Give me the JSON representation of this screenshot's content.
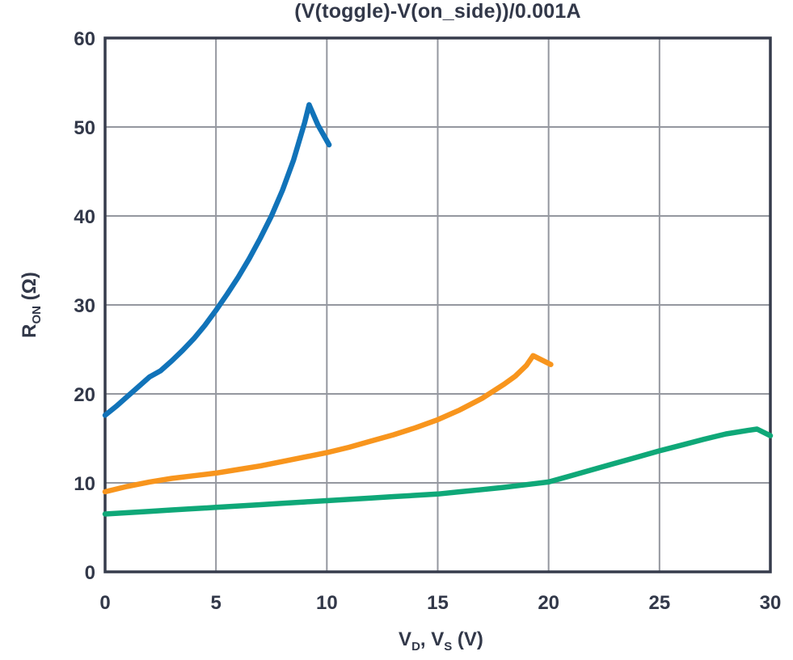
{
  "chart_data": {
    "type": "line",
    "title": "(V(toggle)-V(on_side))/0.001A",
    "xlabel": "V_D, V_S (V)",
    "ylabel": "R_ON (Ω)",
    "xlabel_parts": [
      {
        "t": "V"
      },
      {
        "t": "D",
        "sub": true
      },
      {
        "t": ", V"
      },
      {
        "t": "S",
        "sub": true
      },
      {
        "t": " (V)"
      }
    ],
    "ylabel_parts": [
      {
        "t": "R"
      },
      {
        "t": "ON",
        "sub": true
      },
      {
        "t": " (Ω)"
      }
    ],
    "xlim": [
      0,
      30
    ],
    "ylim": [
      0,
      60
    ],
    "x_ticks": [
      0,
      5,
      10,
      15,
      20,
      25,
      30
    ],
    "y_ticks": [
      0,
      10,
      20,
      30,
      40,
      50,
      60
    ],
    "grid": true,
    "legend_position": "none",
    "colors": {
      "blue": "#1173B9",
      "orange": "#F8951D",
      "green": "#0FA878",
      "axis": "#363C4C",
      "grid": "#94979F",
      "text": "#323849",
      "background": "#FFFFFF"
    },
    "series": [
      {
        "name": "blue",
        "color_key": "blue",
        "points": [
          [
            0,
            17.6
          ],
          [
            0.5,
            18.6
          ],
          [
            1,
            19.7
          ],
          [
            1.5,
            20.8
          ],
          [
            2,
            21.9
          ],
          [
            2.5,
            22.6
          ],
          [
            3,
            23.7
          ],
          [
            3.5,
            24.9
          ],
          [
            4,
            26.2
          ],
          [
            4.5,
            27.7
          ],
          [
            5,
            29.4
          ],
          [
            5.5,
            31.2
          ],
          [
            6,
            33.1
          ],
          [
            6.5,
            35.2
          ],
          [
            7,
            37.5
          ],
          [
            7.5,
            40.0
          ],
          [
            8,
            42.9
          ],
          [
            8.5,
            46.3
          ],
          [
            9,
            50.5
          ],
          [
            9.2,
            52.5
          ],
          [
            9.6,
            50.2
          ],
          [
            10.1,
            48.0
          ]
        ]
      },
      {
        "name": "orange",
        "color_key": "orange",
        "points": [
          [
            0,
            9.0
          ],
          [
            1,
            9.6
          ],
          [
            2,
            10.1
          ],
          [
            3,
            10.5
          ],
          [
            4,
            10.8
          ],
          [
            5,
            11.1
          ],
          [
            6,
            11.5
          ],
          [
            7,
            11.9
          ],
          [
            8,
            12.4
          ],
          [
            9,
            12.9
          ],
          [
            10,
            13.4
          ],
          [
            11,
            14.0
          ],
          [
            12,
            14.7
          ],
          [
            13,
            15.4
          ],
          [
            14,
            16.2
          ],
          [
            15,
            17.1
          ],
          [
            16,
            18.2
          ],
          [
            17,
            19.5
          ],
          [
            18,
            21.1
          ],
          [
            18.5,
            22.0
          ],
          [
            19,
            23.2
          ],
          [
            19.3,
            24.3
          ],
          [
            20.1,
            23.3
          ]
        ]
      },
      {
        "name": "green",
        "color_key": "green",
        "points": [
          [
            0,
            6.5
          ],
          [
            1,
            6.65
          ],
          [
            2,
            6.8
          ],
          [
            3,
            6.95
          ],
          [
            4,
            7.1
          ],
          [
            5,
            7.25
          ],
          [
            6,
            7.4
          ],
          [
            7,
            7.55
          ],
          [
            8,
            7.7
          ],
          [
            9,
            7.85
          ],
          [
            10,
            8.0
          ],
          [
            11,
            8.15
          ],
          [
            12,
            8.3
          ],
          [
            13,
            8.45
          ],
          [
            14,
            8.6
          ],
          [
            15,
            8.75
          ],
          [
            16,
            9.0
          ],
          [
            17,
            9.25
          ],
          [
            18,
            9.5
          ],
          [
            19,
            9.8
          ],
          [
            20,
            10.1
          ],
          [
            21,
            10.8
          ],
          [
            22,
            11.5
          ],
          [
            23,
            12.2
          ],
          [
            24,
            12.9
          ],
          [
            25,
            13.6
          ],
          [
            26,
            14.25
          ],
          [
            27,
            14.9
          ],
          [
            28,
            15.5
          ],
          [
            29,
            15.9
          ],
          [
            29.4,
            16.05
          ],
          [
            30,
            15.3
          ]
        ]
      }
    ]
  }
}
